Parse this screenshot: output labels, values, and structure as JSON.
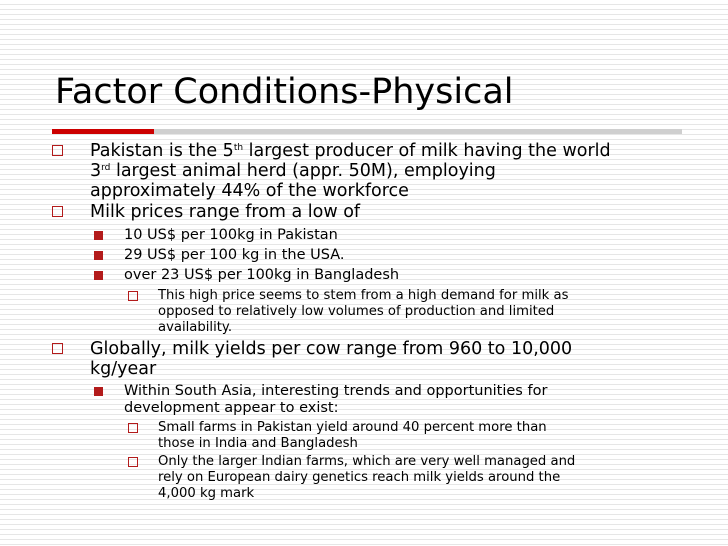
{
  "slide": {
    "title": "Factor Conditions-Physical",
    "icons": {
      "level1_bullet": "hollow-square-bullet",
      "level2_bullet": "filled-square-bullet",
      "level3_bullet": "hollow-square-bullet"
    },
    "colors": {
      "accent": "#cc0000",
      "bullet": "#b31b1b",
      "rule_gray": "#cfcfcf"
    },
    "b1": {
      "l1_a": "Pakistan is the 5",
      "l1_sup": "th",
      "l1_b": " largest producer of milk having the world",
      "l2_a": "3",
      "l2_sup": "rd",
      "l2_b": " largest animal herd (appr. 50M), employing",
      "l3": "approximately 44% of the workforce"
    },
    "b2": {
      "text": "Milk prices range from a low of",
      "sub": [
        "10 US$ per 100kg in Pakistan",
        "29 US$ per 100 kg in the USA.",
        "over 23 US$ per 100kg in Bangladesh"
      ],
      "subsub_lines": [
        "This high price seems to stem from a high demand for milk as",
        "opposed to relatively low volumes of production and limited",
        "availability."
      ]
    },
    "b3": {
      "lines": [
        "Globally, milk yields per cow range from 960 to 10,000",
        "kg/year"
      ],
      "sub_lines": [
        "Within South Asia, interesting trends and opportunities for",
        "development appear to exist:"
      ],
      "subsub1_lines": [
        "Small farms in Pakistan yield around 40 percent more than",
        "those in India and Bangladesh"
      ],
      "subsub2_lines": [
        "Only the larger Indian farms, which are very well managed and",
        "rely on European dairy genetics reach milk yields around the",
        "4,000 kg mark"
      ]
    }
  }
}
